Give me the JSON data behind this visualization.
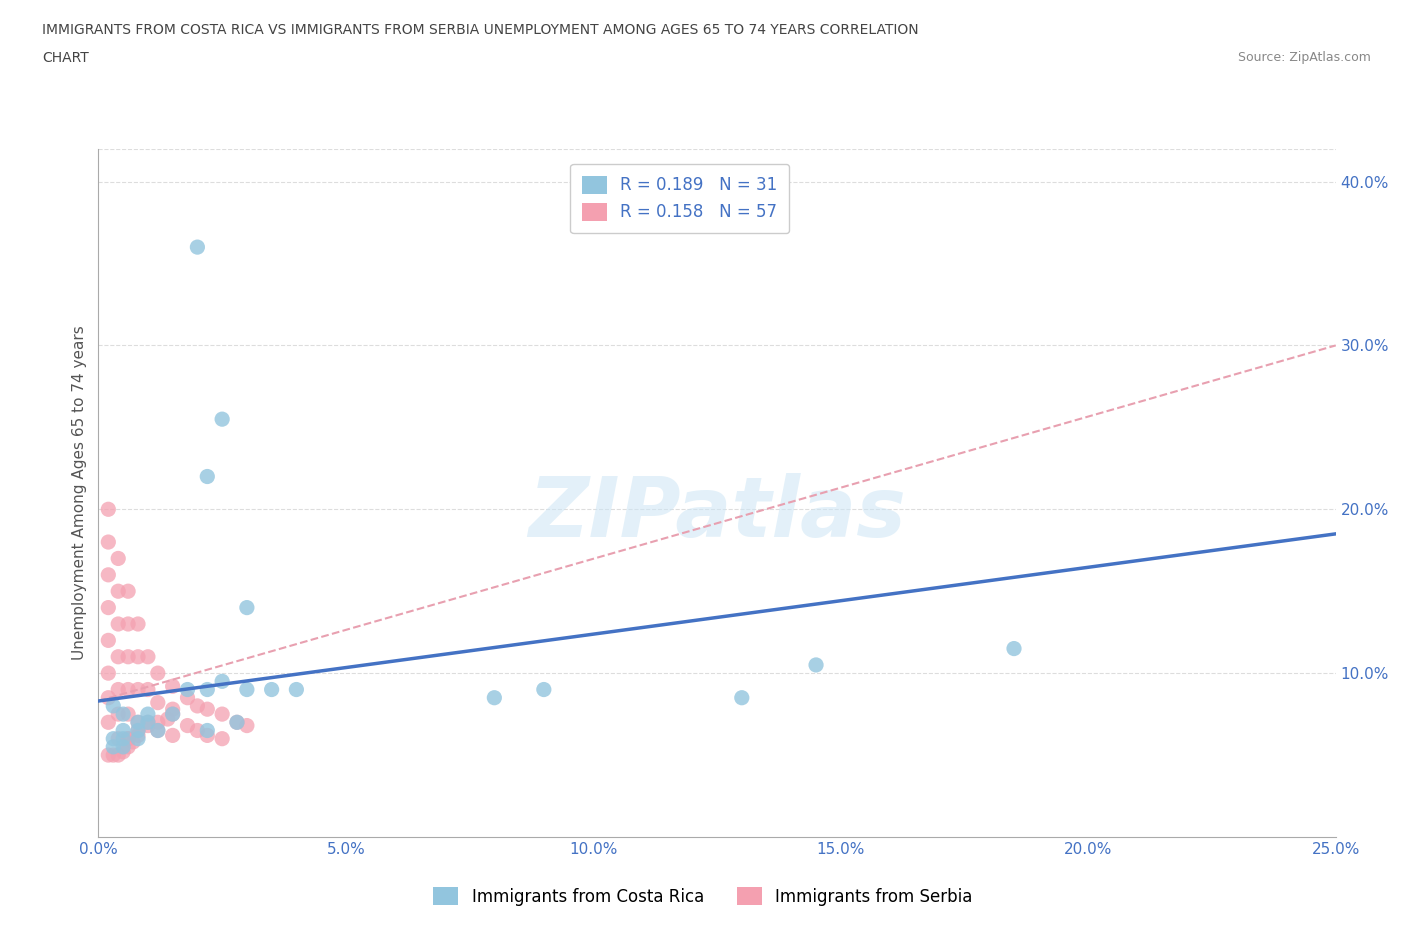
{
  "title_line1": "IMMIGRANTS FROM COSTA RICA VS IMMIGRANTS FROM SERBIA UNEMPLOYMENT AMONG AGES 65 TO 74 YEARS CORRELATION",
  "title_line2": "CHART",
  "source": "Source: ZipAtlas.com",
  "ylabel": "Unemployment Among Ages 65 to 74 years",
  "watermark": "ZIPatlas",
  "xlim": [
    0.0,
    0.25
  ],
  "ylim": [
    0.0,
    0.42
  ],
  "xtick_labels": [
    "0.0%",
    "5.0%",
    "10.0%",
    "15.0%",
    "20.0%",
    "25.0%"
  ],
  "xtick_vals": [
    0.0,
    0.05,
    0.1,
    0.15,
    0.2,
    0.25
  ],
  "ytick_labels": [
    "10.0%",
    "20.0%",
    "30.0%",
    "40.0%"
  ],
  "ytick_vals": [
    0.1,
    0.2,
    0.3,
    0.4
  ],
  "costa_rica_color": "#92C5DE",
  "serbia_color": "#F4A0B0",
  "costa_rica_line_color": "#4472C4",
  "serbia_line_color": "#E8A0B0",
  "R_costa_rica": 0.189,
  "N_costa_rica": 31,
  "R_serbia": 0.158,
  "N_serbia": 57,
  "costa_rica_scatter_x": [
    0.02,
    0.022,
    0.018,
    0.025,
    0.03,
    0.035,
    0.04,
    0.01,
    0.015,
    0.005,
    0.008,
    0.012,
    0.025,
    0.03,
    0.022,
    0.005,
    0.008,
    0.01,
    0.005,
    0.008,
    0.08,
    0.09,
    0.13,
    0.145,
    0.185,
    0.005,
    0.003,
    0.028,
    0.022,
    0.003,
    0.003
  ],
  "costa_rica_scatter_y": [
    0.36,
    0.09,
    0.09,
    0.095,
    0.09,
    0.09,
    0.09,
    0.07,
    0.075,
    0.06,
    0.065,
    0.065,
    0.255,
    0.14,
    0.22,
    0.065,
    0.07,
    0.075,
    0.055,
    0.06,
    0.085,
    0.09,
    0.085,
    0.105,
    0.115,
    0.075,
    0.08,
    0.07,
    0.065,
    0.055,
    0.06
  ],
  "serbia_scatter_x": [
    0.002,
    0.002,
    0.002,
    0.002,
    0.002,
    0.002,
    0.002,
    0.002,
    0.004,
    0.004,
    0.004,
    0.004,
    0.004,
    0.004,
    0.004,
    0.006,
    0.006,
    0.006,
    0.006,
    0.006,
    0.006,
    0.008,
    0.008,
    0.008,
    0.008,
    0.01,
    0.01,
    0.01,
    0.012,
    0.012,
    0.012,
    0.015,
    0.015,
    0.015,
    0.018,
    0.018,
    0.02,
    0.02,
    0.022,
    0.022,
    0.025,
    0.025,
    0.028,
    0.03,
    0.002,
    0.003,
    0.004,
    0.005,
    0.006,
    0.006,
    0.007,
    0.008,
    0.008,
    0.01,
    0.012,
    0.014,
    0.015
  ],
  "serbia_scatter_y": [
    0.2,
    0.18,
    0.16,
    0.14,
    0.12,
    0.1,
    0.085,
    0.07,
    0.17,
    0.15,
    0.13,
    0.11,
    0.09,
    0.075,
    0.06,
    0.15,
    0.13,
    0.11,
    0.09,
    0.075,
    0.06,
    0.13,
    0.11,
    0.09,
    0.07,
    0.11,
    0.09,
    0.07,
    0.1,
    0.082,
    0.065,
    0.092,
    0.078,
    0.062,
    0.085,
    0.068,
    0.08,
    0.065,
    0.078,
    0.062,
    0.075,
    0.06,
    0.07,
    0.068,
    0.05,
    0.05,
    0.05,
    0.052,
    0.055,
    0.06,
    0.058,
    0.062,
    0.065,
    0.068,
    0.07,
    0.072,
    0.075
  ],
  "costa_rica_trend_x": [
    0.0,
    0.25
  ],
  "costa_rica_trend_y": [
    0.083,
    0.185
  ],
  "serbia_trend_x": [
    0.0,
    0.25
  ],
  "serbia_trend_y": [
    0.083,
    0.3
  ],
  "background_color": "#ffffff",
  "grid_color": "#dddddd",
  "legend_label_cr": "Immigrants from Costa Rica",
  "legend_label_sr": "Immigrants from Serbia"
}
